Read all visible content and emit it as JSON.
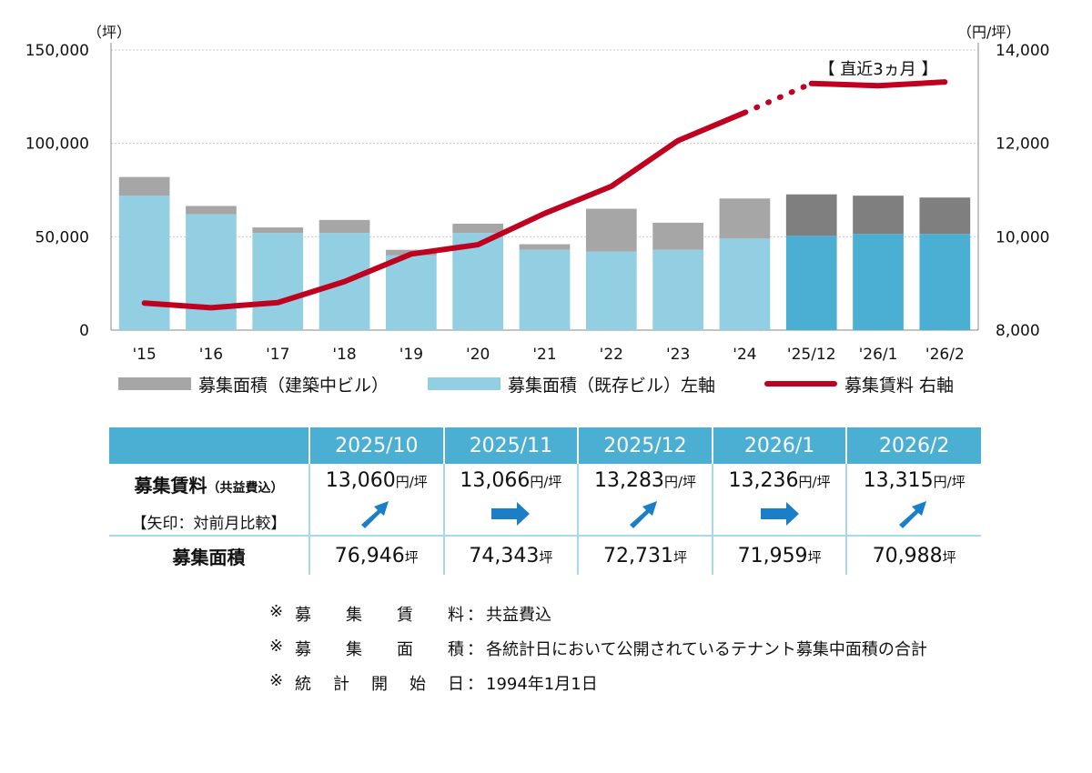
{
  "chart_data": {
    "type": "bar+line",
    "categories": [
      "'15",
      "'16",
      "'17",
      "'18",
      "'19",
      "'20",
      "'21",
      "'22",
      "'23",
      "'24",
      "'25/12",
      "'26/1",
      "'26/2"
    ],
    "left_axis": {
      "unit": "（坪）",
      "ylim": [
        0,
        150000
      ],
      "ticks": [
        "0",
        "50,000",
        "100,000",
        "150,000"
      ],
      "tick_values": [
        0,
        50000,
        100000,
        150000
      ]
    },
    "right_axis": {
      "unit": "（円/坪）",
      "ylim": [
        8000,
        14000
      ],
      "ticks": [
        "8,000",
        "10,000",
        "12,000",
        "14,000"
      ],
      "tick_values": [
        8000,
        10000,
        12000,
        14000
      ]
    },
    "series": [
      {
        "name": "募集面積（既存ビル）左軸",
        "type": "bar",
        "axis": "left",
        "values": [
          72000,
          62000,
          52000,
          52000,
          40000,
          52000,
          43000,
          42000,
          43000,
          49000,
          50500,
          51500,
          51500
        ]
      },
      {
        "name": "募集面積（建築中ビル）",
        "type": "bar",
        "axis": "left",
        "values": [
          10000,
          4500,
          3000,
          7000,
          3000,
          5000,
          3000,
          23000,
          14500,
          21500,
          22200,
          20500,
          19500
        ]
      },
      {
        "name": "募集賃料 右軸",
        "type": "line",
        "axis": "right",
        "values": [
          8580,
          8480,
          8590,
          9040,
          9630,
          9830,
          10500,
          11080,
          12060,
          12660,
          13283,
          13236,
          13315
        ]
      }
    ],
    "recent_label": "【 直近3ヵ月 】",
    "legend": {
      "construction": "募集面積（建築中ビル）",
      "existing": "募集面積（既存ビル）左軸",
      "rent": "募集賃料 右軸"
    },
    "colors": {
      "construction": "#a6a6a6",
      "construction_recent": "#7f7f7f",
      "existing": "#92cfe3",
      "existing_recent": "#4aafd2",
      "rent": "#c0001f"
    }
  },
  "table": {
    "columns": [
      "2025/10",
      "2025/11",
      "2025/12",
      "2026/1",
      "2026/2"
    ],
    "rent_row_label": "募集賃料",
    "rent_row_sublabel": "（共益費込）",
    "rent_row_note": "【矢印：対前月比較】",
    "rent_unit": "円/坪",
    "rents": [
      "13,060",
      "13,066",
      "13,283",
      "13,236",
      "13,315"
    ],
    "arrows": [
      "up",
      "flat",
      "up",
      "flat",
      "up"
    ],
    "area_row_label": "募集面積",
    "area_unit": "坪",
    "areas": [
      "76,946",
      "74,343",
      "72,731",
      "71,959",
      "70,988"
    ]
  },
  "notes": [
    {
      "mark": "※",
      "label": [
        "募",
        "集",
        "賃",
        "料"
      ],
      "colon": "：",
      "text": "共益費込"
    },
    {
      "mark": "※",
      "label": [
        "募",
        "集",
        "面",
        "積"
      ],
      "colon": "：",
      "text": "各統計日において公開されているテナント募集中面積の合計"
    },
    {
      "mark": "※",
      "label": [
        "統",
        "計",
        "開",
        "始",
        "日"
      ],
      "colon": "：",
      "text": "1994年1月1日"
    }
  ]
}
